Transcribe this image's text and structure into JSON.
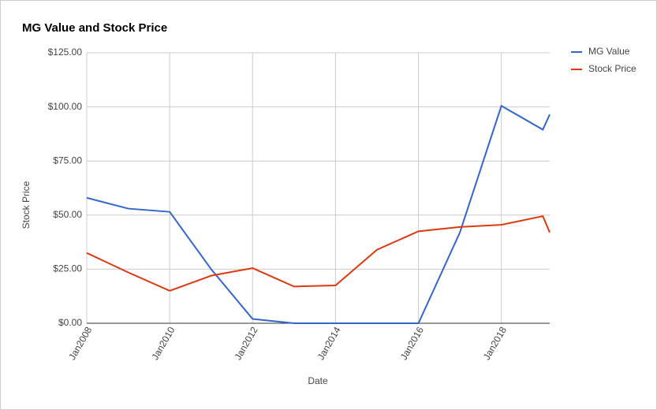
{
  "chart_data": {
    "type": "line",
    "title": "MG Value and Stock Price",
    "x_label": "Date",
    "y_label": "Stock Price",
    "x": [
      "2008-01",
      "2009-01",
      "2010-01",
      "2011-01",
      "2012-01",
      "2013-01",
      "2014-01",
      "2015-01",
      "2016-01",
      "2017-01",
      "2018-01",
      "2019-01",
      "2019-03"
    ],
    "series": [
      {
        "name": "MG Value",
        "color": "#3366cc",
        "values": [
          58,
          53,
          51.5,
          25,
          2,
          0,
          0,
          0,
          0,
          42,
          100.5,
          89.5,
          96.5
        ]
      },
      {
        "name": "Stock Price",
        "color": "#dc3912",
        "values": [
          32.5,
          23.5,
          15,
          22,
          25.5,
          17,
          17.5,
          34,
          42.5,
          44.5,
          45.5,
          49.5,
          42
        ]
      }
    ],
    "xlim": [
      "2008-01",
      "2019-03"
    ],
    "xticks": [
      {
        "value": "2008-01",
        "label": "Jan2008"
      },
      {
        "value": "2010-01",
        "label": "Jan2010"
      },
      {
        "value": "2012-01",
        "label": "Jan2012"
      },
      {
        "value": "2014-01",
        "label": "Jan2014"
      },
      {
        "value": "2016-01",
        "label": "Jan2016"
      },
      {
        "value": "2018-01",
        "label": "Jan2018"
      }
    ],
    "ylim": [
      0,
      125
    ],
    "yticks": [
      {
        "value": 0,
        "label": "$0.00"
      },
      {
        "value": 25,
        "label": "$25.00"
      },
      {
        "value": 50,
        "label": "$50.00"
      },
      {
        "value": 75,
        "label": "$75.00"
      },
      {
        "value": 100,
        "label": "$100.00"
      },
      {
        "value": 125,
        "label": "$125.00"
      }
    ],
    "grid": true,
    "legend": "right"
  }
}
